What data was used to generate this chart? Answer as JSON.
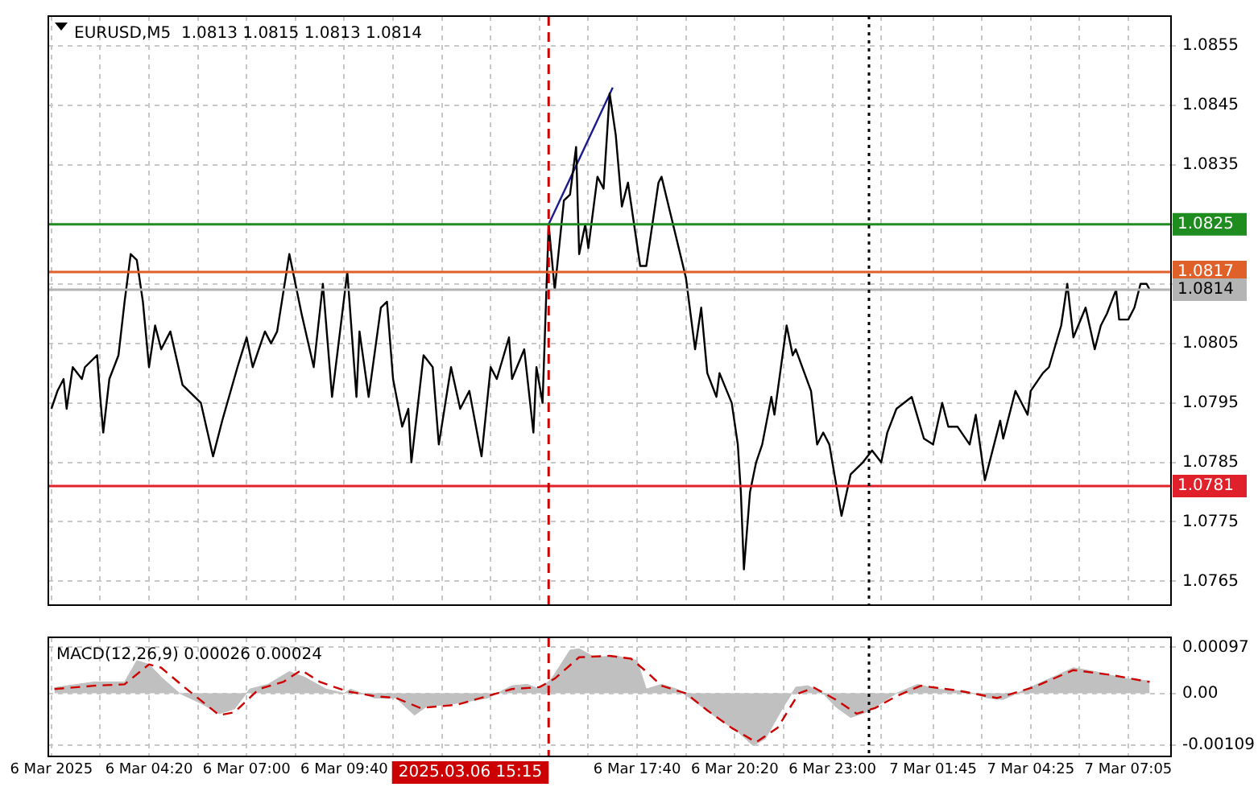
{
  "chart_data": [
    {
      "type": "line",
      "title": "EURUSD,M5  1.0813 1.0815 1.0813 1.0814",
      "xlim": [
        "2025-03-06T01:35",
        "2025-03-07T08:15"
      ],
      "ylim": [
        1.0761,
        1.086
      ],
      "grid": true,
      "legend": false,
      "tick_labels": "y",
      "marker": "none",
      "xticks": [
        {
          "value": "2025-03-06T01:40",
          "label": null
        },
        {
          "value": "2025-03-06T03:00",
          "label": null
        },
        {
          "value": "2025-03-06T04:20",
          "label": null
        },
        {
          "value": "2025-03-06T05:40",
          "label": null
        },
        {
          "value": "2025-03-06T07:00",
          "label": null
        },
        {
          "value": "2025-03-06T08:20",
          "label": null
        },
        {
          "value": "2025-03-06T09:40",
          "label": null
        },
        {
          "value": "2025-03-06T11:00",
          "label": null
        },
        {
          "value": "2025-03-06T12:20",
          "label": null
        },
        {
          "value": "2025-03-06T13:40",
          "label": null
        },
        {
          "value": "2025-03-06T15:00",
          "label": null
        },
        {
          "value": "2025-03-06T16:20",
          "label": null
        },
        {
          "value": "2025-03-06T17:40",
          "label": null
        },
        {
          "value": "2025-03-06T19:00",
          "label": null
        },
        {
          "value": "2025-03-06T20:20",
          "label": null
        },
        {
          "value": "2025-03-06T21:40",
          "label": null
        },
        {
          "value": "2025-03-06T23:00",
          "label": null
        },
        {
          "value": "2025-03-07T00:20",
          "label": null
        },
        {
          "value": "2025-03-07T01:45",
          "label": null
        },
        {
          "value": "2025-03-07T03:05",
          "label": null
        },
        {
          "value": "2025-03-07T04:25",
          "label": null
        },
        {
          "value": "2025-03-07T05:45",
          "label": null
        },
        {
          "value": "2025-03-07T07:05",
          "label": null
        }
      ],
      "yticks": [
        1.0765,
        1.0775,
        1.0785,
        1.0795,
        1.0805,
        {
          "value": 1.0815,
          "label": null
        },
        {
          "value": 1.0825,
          "label": null
        },
        1.0835,
        1.0845,
        1.0855
      ],
      "series": [
        {
          "color": "#000000",
          "x": [
            "2025-03-06T01:40",
            "2025-03-06T01:50",
            "2025-03-06T02:00",
            "2025-03-06T02:05",
            "2025-03-06T02:15",
            "2025-03-06T02:30",
            "2025-03-06T02:35",
            "2025-03-06T02:55",
            "2025-03-06T03:00",
            "2025-03-06T03:05",
            "2025-03-06T03:15",
            "2025-03-06T03:30",
            "2025-03-06T03:40",
            "2025-03-06T03:50",
            "2025-03-06T04:00",
            "2025-03-06T04:10",
            "2025-03-06T04:20",
            "2025-03-06T04:30",
            "2025-03-06T04:40",
            "2025-03-06T04:55",
            "2025-03-06T05:15",
            "2025-03-06T05:45",
            "2025-03-06T06:05",
            "2025-03-06T06:20",
            "2025-03-06T06:45",
            "2025-03-06T07:00",
            "2025-03-06T07:10",
            "2025-03-06T07:30",
            "2025-03-06T07:40",
            "2025-03-06T07:50",
            "2025-03-06T08:10",
            "2025-03-06T08:30",
            "2025-03-06T08:50",
            "2025-03-06T09:05",
            "2025-03-06T09:20",
            "2025-03-06T09:45",
            "2025-03-06T10:00",
            "2025-03-06T10:05",
            "2025-03-06T10:20",
            "2025-03-06T10:40",
            "2025-03-06T10:50",
            "2025-03-06T11:00",
            "2025-03-06T11:15",
            "2025-03-06T11:25",
            "2025-03-06T11:30",
            "2025-03-06T11:50",
            "2025-03-06T12:05",
            "2025-03-06T12:15",
            "2025-03-06T12:35",
            "2025-03-06T12:50",
            "2025-03-06T13:05",
            "2025-03-06T13:25",
            "2025-03-06T13:40",
            "2025-03-06T13:50",
            "2025-03-06T14:10",
            "2025-03-06T14:15",
            "2025-03-06T14:35",
            "2025-03-06T14:50",
            "2025-03-06T14:55",
            "2025-03-06T15:05",
            "2025-03-06T15:15",
            "2025-03-06T15:25",
            "2025-03-06T15:40",
            "2025-03-06T15:50",
            "2025-03-06T16:00",
            "2025-03-06T16:05",
            "2025-03-06T16:15",
            "2025-03-06T16:20",
            "2025-03-06T16:35",
            "2025-03-06T16:45",
            "2025-03-06T16:55",
            "2025-03-06T17:05",
            "2025-03-06T17:15",
            "2025-03-06T17:25",
            "2025-03-06T17:35",
            "2025-03-06T17:45",
            "2025-03-06T17:55",
            "2025-03-06T18:15",
            "2025-03-06T18:20",
            "2025-03-06T19:00",
            "2025-03-06T19:15",
            "2025-03-06T19:25",
            "2025-03-06T19:35",
            "2025-03-06T19:50",
            "2025-03-06T19:55",
            "2025-03-06T20:15",
            "2025-03-06T20:25",
            "2025-03-06T20:30",
            "2025-03-06T20:35",
            "2025-03-06T20:45",
            "2025-03-06T20:55",
            "2025-03-06T21:05",
            "2025-03-06T21:20",
            "2025-03-06T21:25",
            "2025-03-06T21:45",
            "2025-03-06T21:55",
            "2025-03-06T22:00",
            "2025-03-06T22:25",
            "2025-03-06T22:35",
            "2025-03-06T22:45",
            "2025-03-06T22:55",
            "2025-03-06T23:15",
            "2025-03-06T23:30",
            "2025-03-06T23:50",
            "2025-03-07T00:05",
            "2025-03-07T00:20",
            "2025-03-07T00:30",
            "2025-03-07T00:45",
            "2025-03-07T01:10",
            "2025-03-07T01:30",
            "2025-03-07T01:45",
            "2025-03-07T02:00",
            "2025-03-07T02:10",
            "2025-03-07T02:25",
            "2025-03-07T02:45",
            "2025-03-07T02:55",
            "2025-03-07T03:10",
            "2025-03-07T03:25",
            "2025-03-07T03:35",
            "2025-03-07T03:40",
            "2025-03-07T04:00",
            "2025-03-07T04:20",
            "2025-03-07T04:25",
            "2025-03-07T04:45",
            "2025-03-07T04:55",
            "2025-03-07T05:15",
            "2025-03-07T05:25",
            "2025-03-07T05:35",
            "2025-03-07T05:55",
            "2025-03-07T06:10",
            "2025-03-07T06:20",
            "2025-03-07T06:30",
            "2025-03-07T06:45",
            "2025-03-07T06:50",
            "2025-03-07T07:05",
            "2025-03-07T07:15",
            "2025-03-07T07:25",
            "2025-03-07T07:35",
            "2025-03-07T07:40"
          ],
          "values": [
            1.0794,
            1.0797,
            1.0799,
            1.0794,
            1.0801,
            1.0799,
            1.0801,
            1.0803,
            1.0796,
            1.079,
            1.0799,
            1.0803,
            1.0812,
            1.082,
            1.0819,
            1.0812,
            1.0801,
            1.0808,
            1.0804,
            1.0807,
            1.0798,
            1.0795,
            1.0786,
            1.0792,
            1.0801,
            1.0806,
            1.0801,
            1.0807,
            1.0805,
            1.0807,
            1.082,
            1.081,
            1.0801,
            1.0815,
            1.0796,
            1.0817,
            1.0796,
            1.0807,
            1.0796,
            1.0811,
            1.0812,
            1.0799,
            1.0791,
            1.0794,
            1.0785,
            1.0803,
            1.0801,
            1.0788,
            1.0801,
            1.0794,
            1.0797,
            1.0786,
            1.0801,
            1.0799,
            1.0806,
            1.0799,
            1.0804,
            1.079,
            1.0801,
            1.0795,
            1.0825,
            1.0814,
            1.0829,
            1.083,
            1.0838,
            1.082,
            1.0825,
            1.0821,
            1.0833,
            1.0831,
            1.0847,
            1.084,
            1.0828,
            1.0832,
            1.0825,
            1.0818,
            1.0818,
            1.0832,
            1.0833,
            1.0816,
            1.0804,
            1.0811,
            1.08,
            1.0796,
            1.08,
            1.0795,
            1.0788,
            1.078,
            1.0767,
            1.078,
            1.0785,
            1.0788,
            1.0796,
            1.0793,
            1.0808,
            1.0803,
            1.0804,
            1.0797,
            1.0788,
            1.079,
            1.0788,
            1.0776,
            1.0783,
            1.0785,
            1.0787,
            1.0785,
            1.079,
            1.0794,
            1.0796,
            1.0789,
            1.0788,
            1.0795,
            1.0791,
            1.0791,
            1.0788,
            1.0793,
            1.0782,
            1.0788,
            1.0792,
            1.0789,
            1.0797,
            1.0793,
            1.0797,
            1.08,
            1.0801,
            1.0808,
            1.0815,
            1.0806,
            1.0811,
            1.0804,
            1.0808,
            1.081,
            1.0814,
            1.0809,
            1.0809,
            1.0811,
            1.0815,
            1.0815,
            1.0814
          ]
        },
        {
          "color": "#1a1a8c",
          "x": [
            "2025-03-06T15:15",
            "2025-03-06T17:00"
          ],
          "values": [
            1.0825,
            1.0848
          ]
        }
      ],
      "ref_lines": [
        {
          "axis": "y",
          "value": 1.0825,
          "label": "1.0825",
          "color": "#1e8c1e"
        },
        {
          "axis": "y",
          "value": 1.0817,
          "label": "1.0817",
          "color": "#e0602a"
        },
        {
          "axis": "y",
          "value": 1.0814,
          "label": "1.0814",
          "color": "#b4b4b4"
        },
        {
          "axis": "y",
          "value": 1.0781,
          "label": "1.0781",
          "color": "#e0202a"
        },
        {
          "axis": "x",
          "value": "2025-03-06T15:15",
          "color": "#cc0000",
          "line_style": "dashed"
        },
        {
          "axis": "x",
          "value": "2025-03-07T00:00",
          "color": "#000000",
          "line_style": "dotted"
        }
      ]
    },
    {
      "type": "area",
      "title": "MACD(12,26,9) 0.00026 0.00024",
      "xlim": [
        "2025-03-06T01:35",
        "2025-03-07T08:15"
      ],
      "ylim": [
        -0.00133,
        0.00118
      ],
      "grid": true,
      "legend": false,
      "marker": "none",
      "xticks": [
        {
          "value": "2025-03-06T01:40",
          "label": "6 Mar 2025"
        },
        {
          "value": "2025-03-06T03:00",
          "label": null
        },
        {
          "value": "2025-03-06T04:20",
          "label": "6 Mar 04:20"
        },
        {
          "value": "2025-03-06T05:40",
          "label": null
        },
        {
          "value": "2025-03-06T07:00",
          "label": "6 Mar 07:00"
        },
        {
          "value": "2025-03-06T08:20",
          "label": null
        },
        {
          "value": "2025-03-06T09:40",
          "label": "6 Mar 09:40"
        },
        {
          "value": "2025-03-06T11:00",
          "label": null
        },
        {
          "value": "2025-03-06T12:20",
          "label": null
        },
        {
          "value": "2025-03-06T13:40",
          "label": null
        },
        {
          "value": "2025-03-06T15:00",
          "label": null
        },
        {
          "value": "2025-03-06T16:20",
          "label": null
        },
        {
          "value": "2025-03-06T17:40",
          "label": "6 Mar 17:40"
        },
        {
          "value": "2025-03-06T19:00",
          "label": null
        },
        {
          "value": "2025-03-06T20:20",
          "label": "6 Mar 20:20"
        },
        {
          "value": "2025-03-06T21:40",
          "label": null
        },
        {
          "value": "2025-03-06T23:00",
          "label": "6 Mar 23:00"
        },
        {
          "value": "2025-03-07T00:20",
          "label": null
        },
        {
          "value": "2025-03-07T01:45",
          "label": "7 Mar 01:45"
        },
        {
          "value": "2025-03-07T03:05",
          "label": null
        },
        {
          "value": "2025-03-07T04:25",
          "label": "7 Mar 04:25"
        },
        {
          "value": "2025-03-07T05:45",
          "label": null
        },
        {
          "value": "2025-03-07T07:05",
          "label": "7 Mar 07:05"
        }
      ],
      "yticks": [
        -0.00109,
        {
          "value": 0,
          "label": "0.00"
        },
        0.00097
      ],
      "series": [
        {
          "color": "#c0c0c0",
          "x": [
            "2025-03-06T01:45",
            "2025-03-06T02:50",
            "2025-03-06T03:40",
            "2025-03-06T04:00",
            "2025-03-06T04:20",
            "2025-03-06T04:40",
            "2025-03-06T05:10",
            "2025-03-06T05:45",
            "2025-03-06T06:15",
            "2025-03-06T06:40",
            "2025-03-06T07:05",
            "2025-03-06T07:35",
            "2025-03-06T08:10",
            "2025-03-06T08:35",
            "2025-03-06T09:10",
            "2025-03-06T09:40",
            "2025-03-06T09:50",
            "2025-03-06T10:30",
            "2025-03-06T11:05",
            "2025-03-06T11:35",
            "2025-03-06T11:55",
            "2025-03-06T12:45",
            "2025-03-06T13:35",
            "2025-03-06T14:15",
            "2025-03-06T14:40",
            "2025-03-06T15:00",
            "2025-03-06T15:20",
            "2025-03-06T15:50",
            "2025-03-06T16:05",
            "2025-03-06T16:30",
            "2025-03-06T17:05",
            "2025-03-06T17:40",
            "2025-03-06T17:55",
            "2025-03-06T18:20",
            "2025-03-06T18:45",
            "2025-03-06T19:10",
            "2025-03-06T19:50",
            "2025-03-06T20:25",
            "2025-03-06T20:50",
            "2025-03-06T21:10",
            "2025-03-06T21:40",
            "2025-03-06T22:00",
            "2025-03-06T22:20",
            "2025-03-06T22:45",
            "2025-03-06T23:05",
            "2025-03-06T23:30",
            "2025-03-06T23:55",
            "2025-03-07T00:20",
            "2025-03-07T00:45",
            "2025-03-07T01:20",
            "2025-03-07T01:50",
            "2025-03-07T02:40",
            "2025-03-07T03:15",
            "2025-03-07T03:40",
            "2025-03-07T04:30",
            "2025-03-07T05:10",
            "2025-03-07T05:35",
            "2025-03-07T06:10",
            "2025-03-07T07:00",
            "2025-03-07T07:40"
          ],
          "values": [
            0.00012,
            0.00024,
            0.00024,
            0.00069,
            0.00061,
            0.00034,
            0,
            -0.00021,
            -0.00043,
            -0.00033,
            9e-05,
            0.00019,
            0.00046,
            0.00034,
            9e-05,
            0,
            9e-05,
            -0.0001,
            -0.0001,
            -0.00046,
            -0.00028,
            -0.00021,
            -0.0001,
            0.00016,
            0.00019,
            9e-05,
            0.00031,
            0.00091,
            0.00094,
            0.00076,
            0.00079,
            0.00069,
            9e-05,
            0.00019,
            9e-05,
            -0.00013,
            -0.00051,
            -0.00081,
            -0.0011,
            -0.00096,
            -0.00028,
            0.00013,
            0.00016,
            0,
            -0.00028,
            -0.00051,
            -0.0004,
            -0.00021,
            0,
            0.00019,
            9e-05,
            4e-05,
            -0.0001,
            -0.00013,
            0.00016,
            0.00039,
            0.00054,
            0.00046,
            0.00031,
            0.00026
          ]
        },
        {
          "type": "line",
          "line_style": "dashed",
          "color": "#cc0000",
          "x": [
            "2025-03-06T01:45",
            "2025-03-06T02:50",
            "2025-03-06T03:40",
            "2025-03-06T04:20",
            "2025-03-06T04:40",
            "2025-03-06T05:15",
            "2025-03-06T06:15",
            "2025-03-06T06:40",
            "2025-03-06T07:20",
            "2025-03-06T08:00",
            "2025-03-06T08:30",
            "2025-03-06T09:00",
            "2025-03-06T09:45",
            "2025-03-06T10:30",
            "2025-03-06T11:05",
            "2025-03-06T11:45",
            "2025-03-06T12:45",
            "2025-03-06T14:15",
            "2025-03-06T15:00",
            "2025-03-06T15:25",
            "2025-03-06T16:05",
            "2025-03-06T16:55",
            "2025-03-06T17:30",
            "2025-03-06T17:55",
            "2025-03-06T18:20",
            "2025-03-06T19:00",
            "2025-03-06T19:35",
            "2025-03-06T20:15",
            "2025-03-06T20:55",
            "2025-03-06T21:30",
            "2025-03-06T22:05",
            "2025-03-06T22:30",
            "2025-03-06T23:05",
            "2025-03-06T23:40",
            "2025-03-07T00:10",
            "2025-03-07T00:45",
            "2025-03-07T01:25",
            "2025-03-07T02:25",
            "2025-03-07T03:30",
            "2025-03-07T04:30",
            "2025-03-07T05:35",
            "2025-03-07T06:35",
            "2025-03-07T07:40"
          ],
          "values": [
            9e-05,
            0.00016,
            0.00019,
            0.00061,
            0.00054,
            0.00016,
            -0.00046,
            -0.0004,
            9e-05,
            0.00024,
            0.00049,
            0.00024,
            4e-05,
            -6e-05,
            -0.0001,
            -0.00031,
            -0.00024,
            9e-05,
            0.00013,
            0.00031,
            0.00076,
            0.00079,
            0.00073,
            0.00046,
            0.00016,
            0,
            -0.00036,
            -0.00073,
            -0.00103,
            -0.00073,
            0,
            0.00012,
            -0.00013,
            -0.00043,
            -0.00031,
            -6e-05,
            0.00016,
            6e-05,
            -0.0001,
            0.00013,
            0.00049,
            0.00039,
            0.00024
          ]
        }
      ],
      "ref_lines": [
        {
          "axis": "x",
          "value": "2025-03-06T15:15",
          "label": "2025.03.06 15:15",
          "color": "#cc0000",
          "line_style": "dashed"
        },
        {
          "axis": "x",
          "value": "2025-03-07T00:00",
          "color": "#000000",
          "line_style": "dotted"
        }
      ]
    }
  ]
}
